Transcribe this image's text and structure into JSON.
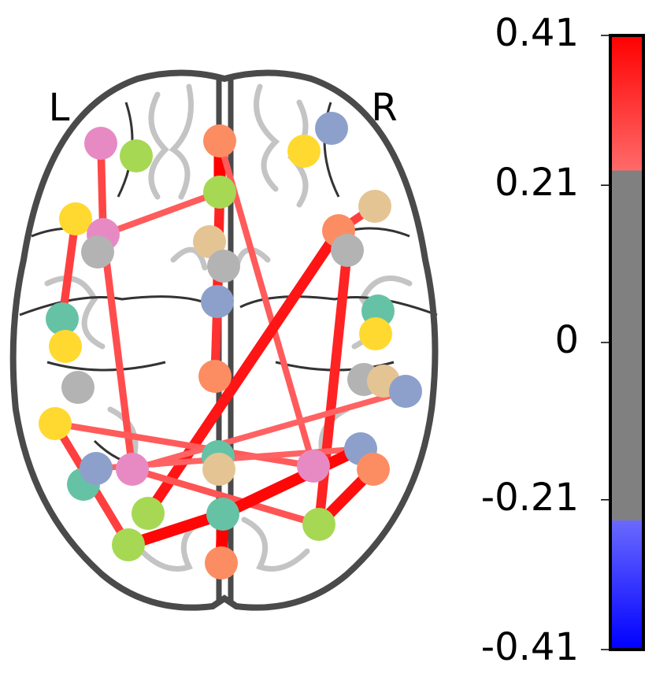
{
  "chart_data": {
    "type": "connectome",
    "hemisphere_labels": [
      "L",
      "R"
    ],
    "edges": {
      "values": [
        0.41,
        0.36,
        0.34,
        0.28,
        0.31,
        0.3,
        0.32,
        0.28,
        0.38,
        0.32,
        0.36,
        0.32,
        0.28,
        0.27,
        0.27,
        0.29,
        0.4,
        0.4,
        0.41,
        0.39
      ]
    },
    "colorbar": {
      "ylim": [
        -0.41,
        0.41
      ],
      "yticks": [
        -0.41,
        -0.21,
        0,
        0.21,
        0.41
      ]
    }
  }
}
